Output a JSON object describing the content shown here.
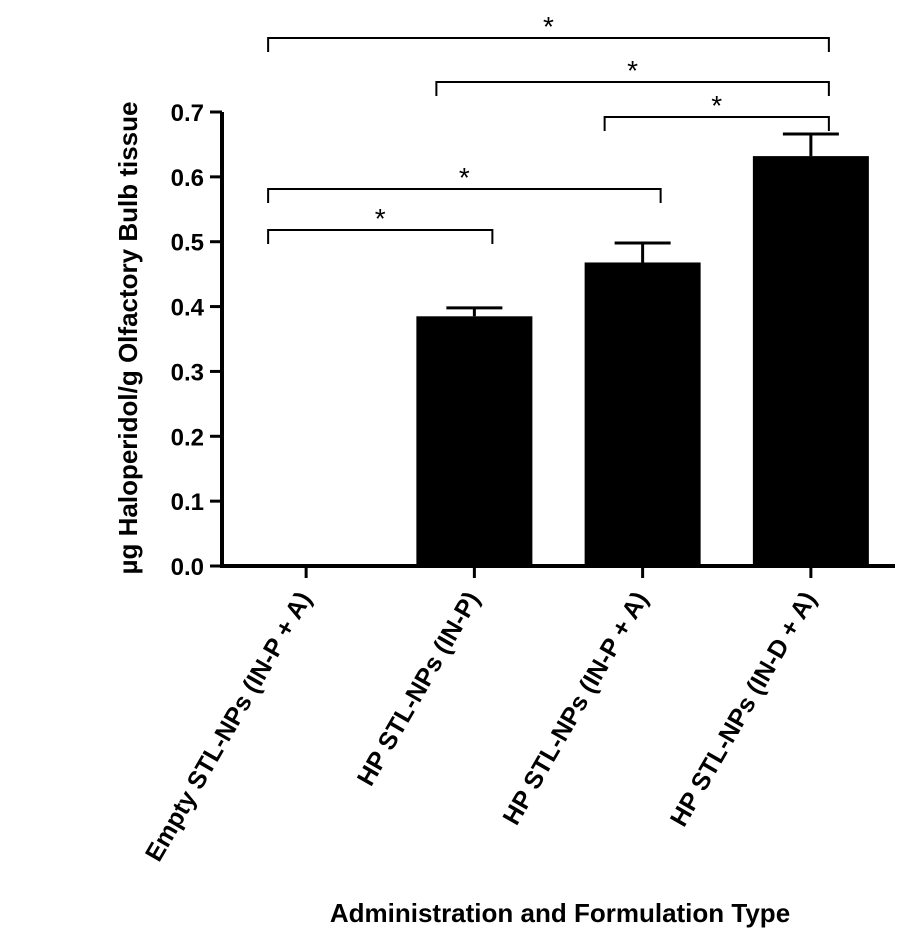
{
  "chart_data": {
    "type": "bar",
    "categories": [
      "Empty STL-NPs (IN-P + A)",
      "HP STL-NPs (IN-P)",
      "HP STL-NPs (IN-P + A)",
      "HP STL-NPs (IN-D + A)"
    ],
    "values": [
      0,
      0.385,
      0.468,
      0.632
    ],
    "errors": [
      0,
      0.013,
      0.03,
      0.034
    ],
    "ylabel": "µg Haloperidol/g Olfactory Bulb tissue",
    "xlabel": "Administration and Formulation Type",
    "ylim": [
      0,
      0.7
    ],
    "yticks": [
      "0.0",
      "0.1",
      "0.2",
      "0.3",
      "0.4",
      "0.5",
      "0.6",
      "0.7"
    ],
    "bar_color": "#000000",
    "significance": [
      {
        "from": 0,
        "to": 3,
        "label": "*"
      },
      {
        "from": 1,
        "to": 3,
        "label": "*"
      },
      {
        "from": 2,
        "to": 3,
        "label": "*"
      },
      {
        "from": 0,
        "to": 2,
        "label": "*"
      },
      {
        "from": 0,
        "to": 1,
        "label": "*"
      }
    ]
  }
}
